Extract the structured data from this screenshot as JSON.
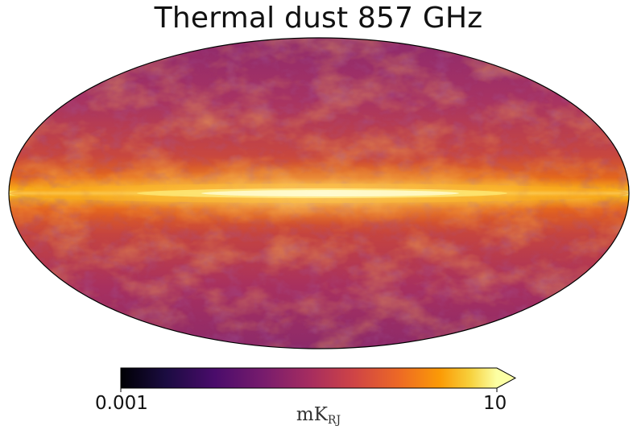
{
  "title": "Thermal dust 857 GHz",
  "colorbar": {
    "min_label": "0.001",
    "max_label": "10",
    "unit_main": "mK",
    "unit_sub": "RJ",
    "colormap": "inferno",
    "scale": "log",
    "extend": "max"
  },
  "map": {
    "projection": "mollweide",
    "galactic_plane_color": "#fcffa4",
    "background_color": "#a2346a",
    "edge_color": "#000000"
  }
}
